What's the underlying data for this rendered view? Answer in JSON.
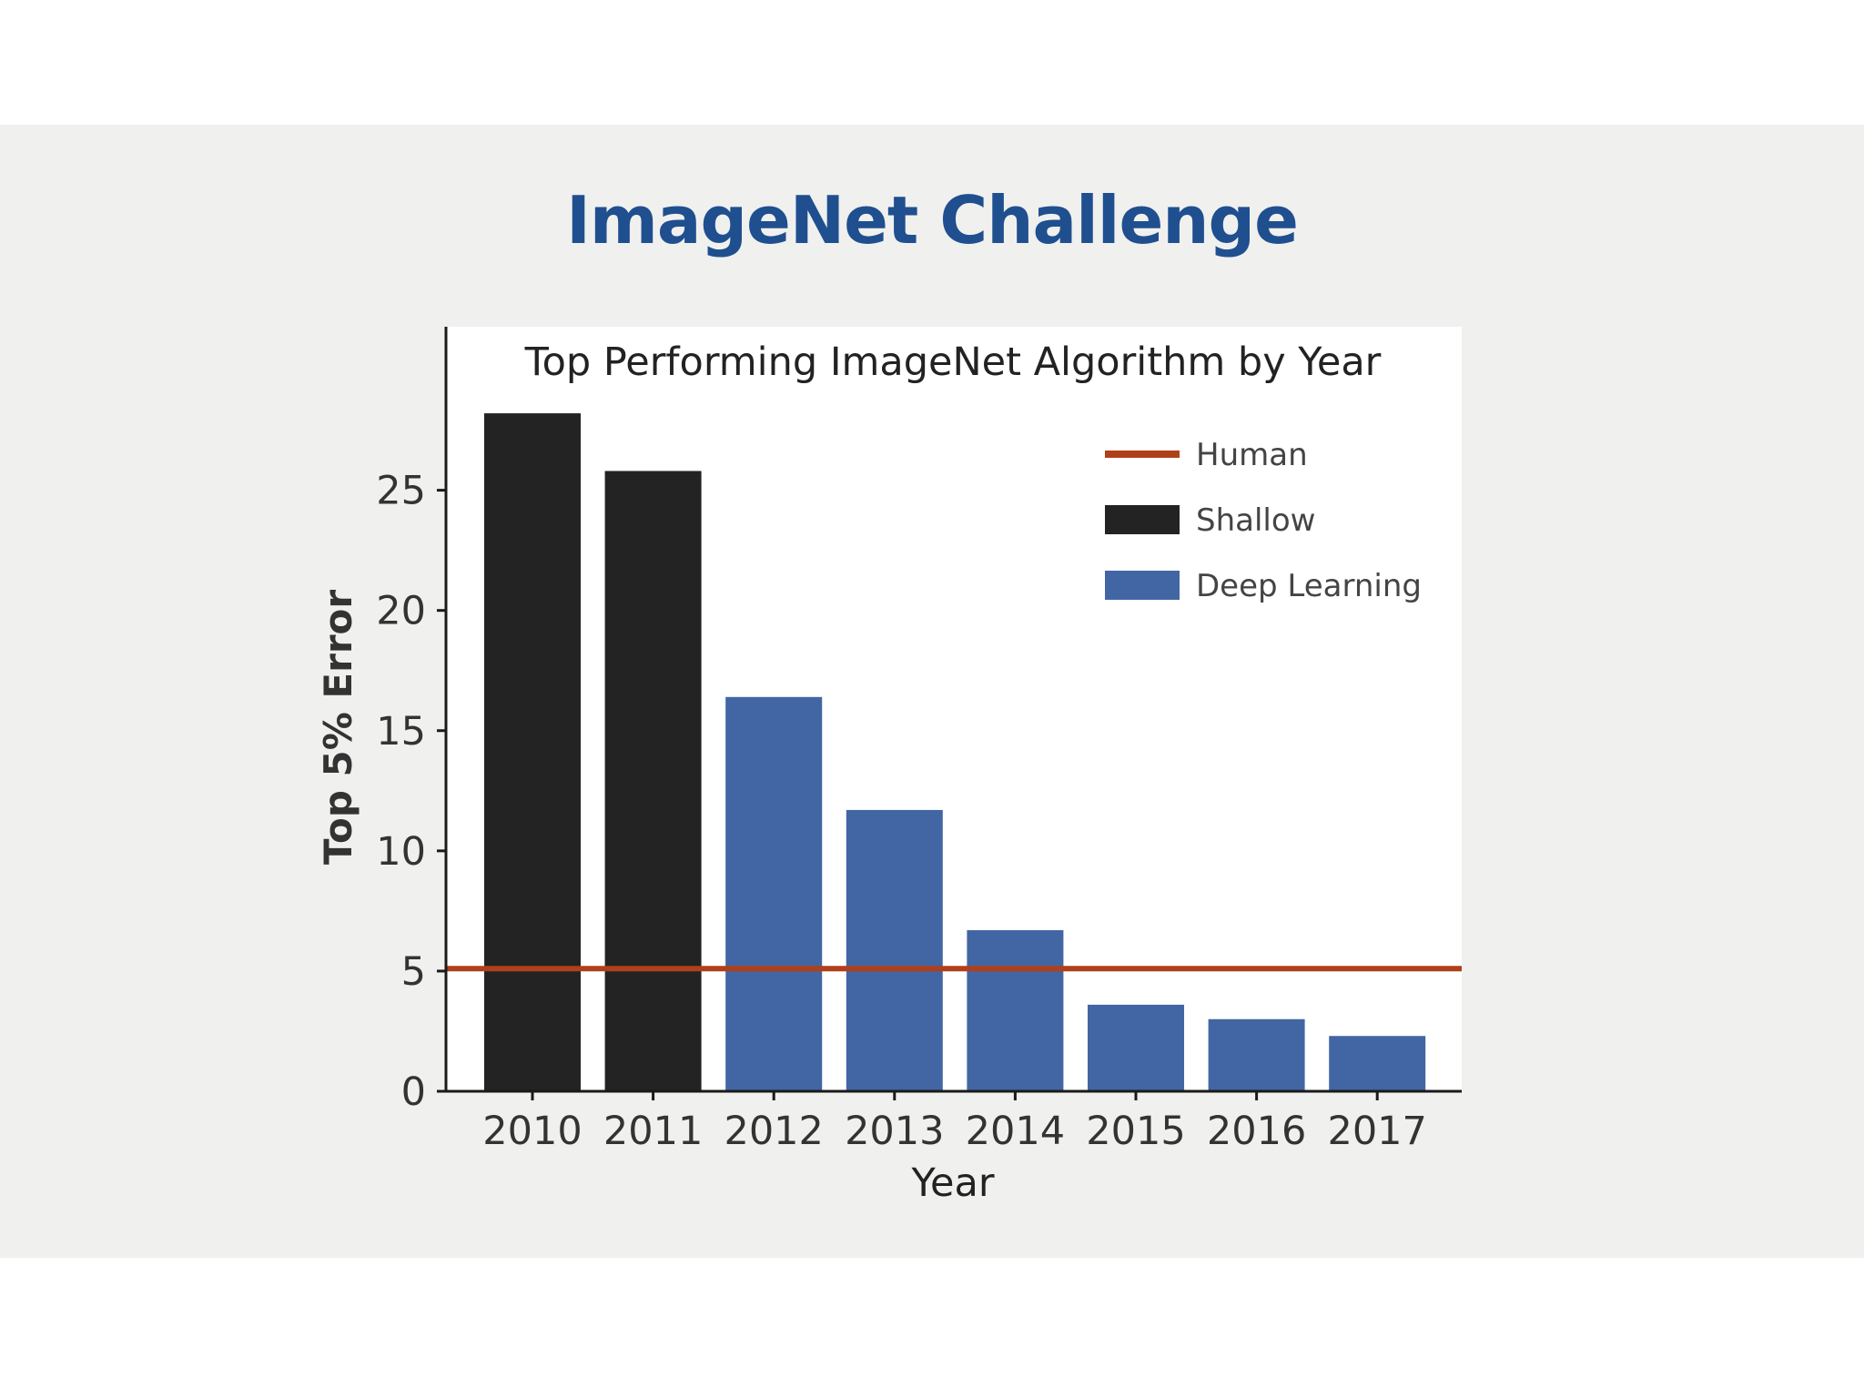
{
  "slide": {
    "title": "ImageNet Challenge"
  },
  "colors": {
    "shallow": "#232323",
    "deep_learning": "#4266a4",
    "human": "#b0401a",
    "axis": "#1a1a1a",
    "plot_bg": "#ffffff"
  },
  "chart_data": {
    "type": "bar",
    "title": "Top Performing ImageNet Algorithm by Year",
    "xlabel": "Year",
    "ylabel": "Top 5% Error",
    "categories": [
      "2010",
      "2011",
      "2012",
      "2013",
      "2014",
      "2015",
      "2016",
      "2017"
    ],
    "values": [
      28.2,
      25.8,
      16.4,
      11.7,
      6.7,
      3.6,
      3.0,
      2.3
    ],
    "groups": [
      "Shallow",
      "Shallow",
      "Deep Learning",
      "Deep Learning",
      "Deep Learning",
      "Deep Learning",
      "Deep Learning",
      "Deep Learning"
    ],
    "reference_line": {
      "name": "Human",
      "value": 5.1
    },
    "ylim": [
      0,
      31.8
    ],
    "yticks": [
      0,
      5,
      10,
      15,
      20,
      25
    ],
    "legend": {
      "position": "top-right",
      "entries": [
        {
          "label": "Human",
          "kind": "line",
          "color_key": "human"
        },
        {
          "label": "Shallow",
          "kind": "box",
          "color_key": "shallow"
        },
        {
          "label": "Deep Learning",
          "kind": "box",
          "color_key": "deep_learning"
        }
      ]
    },
    "grid": false
  }
}
